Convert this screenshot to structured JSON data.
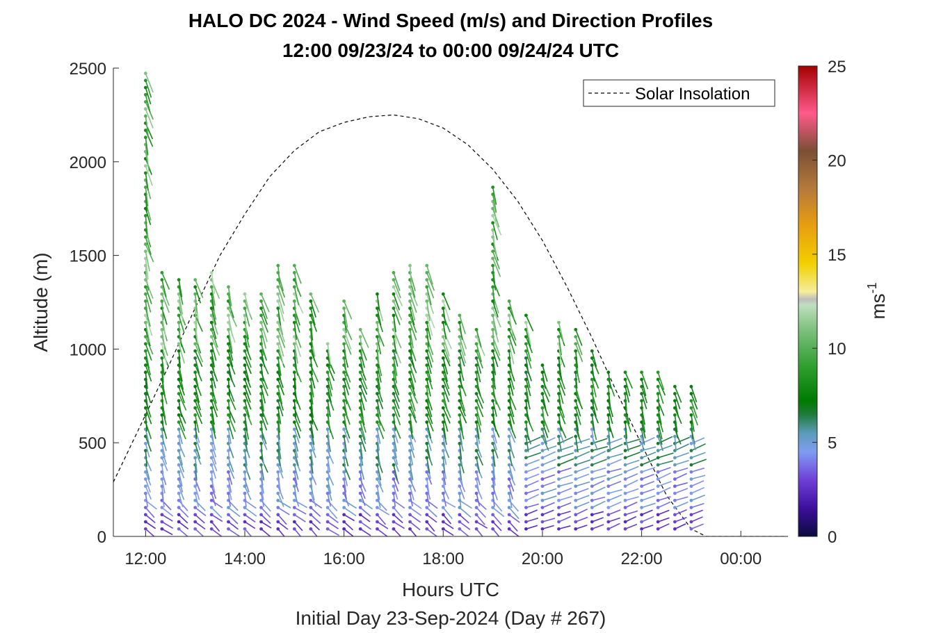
{
  "chart_data": {
    "type": "wind-barb-profile",
    "title_line1": "HALO DC 2024 - Wind Speed (m/s) and Direction Profiles",
    "title_line2": "12:00 09/23/24 to 00:00 09/24/24  UTC",
    "xlabel": "Hours UTC",
    "xlabel2": "Initial Day 23-Sep-2024 (Day # 267)",
    "ylabel": "Altitude (m)",
    "x_ticks": [
      {
        "value": 12,
        "label": "12:00"
      },
      {
        "value": 14,
        "label": "14:00"
      },
      {
        "value": 16,
        "label": "16:00"
      },
      {
        "value": 18,
        "label": "18:00"
      },
      {
        "value": 20,
        "label": "20:00"
      },
      {
        "value": 22,
        "label": "22:00"
      },
      {
        "value": 24,
        "label": "00:00"
      }
    ],
    "xlim": [
      11.35,
      24.95
    ],
    "y_ticks": [
      0,
      500,
      1000,
      1500,
      2000,
      2500
    ],
    "ylim": [
      0,
      2500
    ],
    "colorbar": {
      "label_base": "ms",
      "label_exp": "-1",
      "ticks": [
        0,
        5,
        10,
        15,
        20,
        25
      ],
      "range": [
        0,
        25
      ],
      "stops": [
        {
          "v": 0,
          "color": "#0b0b3a"
        },
        {
          "v": 1.5,
          "color": "#3d0f9c"
        },
        {
          "v": 3,
          "color": "#6f3fd8"
        },
        {
          "v": 4.5,
          "color": "#7f9cf2"
        },
        {
          "v": 5.5,
          "color": "#5b9bb8"
        },
        {
          "v": 6.5,
          "color": "#1e7a3a"
        },
        {
          "v": 7.2,
          "color": "#007a00"
        },
        {
          "v": 9,
          "color": "#2e9e2e"
        },
        {
          "v": 11,
          "color": "#7fc07f"
        },
        {
          "v": 12.3,
          "color": "#bfe0bf"
        },
        {
          "v": 12.6,
          "color": "#bdbdbd"
        },
        {
          "v": 13,
          "color": "#f5ee9e"
        },
        {
          "v": 14.5,
          "color": "#f2d000"
        },
        {
          "v": 16.5,
          "color": "#e89e10"
        },
        {
          "v": 18.5,
          "color": "#b5793a"
        },
        {
          "v": 20.5,
          "color": "#7a4f36"
        },
        {
          "v": 22.5,
          "color": "#ff5a8a"
        },
        {
          "v": 25,
          "color": "#a30000"
        }
      ]
    },
    "legend": {
      "label": "Solar Insolation",
      "position": "top-right"
    },
    "solar_insolation": {
      "note_units": "altitude-axis equivalent",
      "points": [
        [
          11.35,
          290
        ],
        [
          12.0,
          650
        ],
        [
          12.5,
          930
        ],
        [
          13.0,
          1220
        ],
        [
          13.5,
          1500
        ],
        [
          14.0,
          1720
        ],
        [
          14.5,
          1920
        ],
        [
          15.0,
          2060
        ],
        [
          15.5,
          2160
        ],
        [
          16.0,
          2210
        ],
        [
          16.5,
          2240
        ],
        [
          17.0,
          2250
        ],
        [
          17.5,
          2230
        ],
        [
          18.0,
          2180
        ],
        [
          18.5,
          2090
        ],
        [
          19.0,
          1960
        ],
        [
          19.5,
          1790
        ],
        [
          20.0,
          1580
        ],
        [
          20.5,
          1330
        ],
        [
          21.0,
          1060
        ],
        [
          21.5,
          770
        ],
        [
          22.0,
          490
        ],
        [
          22.5,
          220
        ],
        [
          23.0,
          40
        ],
        [
          23.3,
          0
        ],
        [
          24.95,
          0
        ]
      ]
    },
    "profile_times": [
      12.0,
      12.33,
      12.67,
      13.0,
      13.33,
      13.67,
      14.0,
      14.33,
      14.67,
      15.0,
      15.33,
      15.67,
      16.0,
      16.33,
      16.67,
      17.0,
      17.33,
      17.67,
      18.0,
      18.33,
      18.67,
      19.0,
      19.33,
      19.67,
      20.0,
      20.33,
      20.67,
      21.0,
      21.33,
      21.67,
      22.0,
      22.33,
      22.67,
      23.0
    ],
    "profile_tops": [
      2490,
      1410,
      1370,
      1370,
      1410,
      1360,
      1300,
      1320,
      1460,
      1460,
      1320,
      1060,
      1260,
      1120,
      1320,
      1410,
      1460,
      1460,
      1320,
      1190,
      1130,
      1870,
      1280,
      1180,
      940,
      1160,
      1110,
      1010,
      890,
      890,
      890,
      890,
      830,
      800
    ]
  }
}
